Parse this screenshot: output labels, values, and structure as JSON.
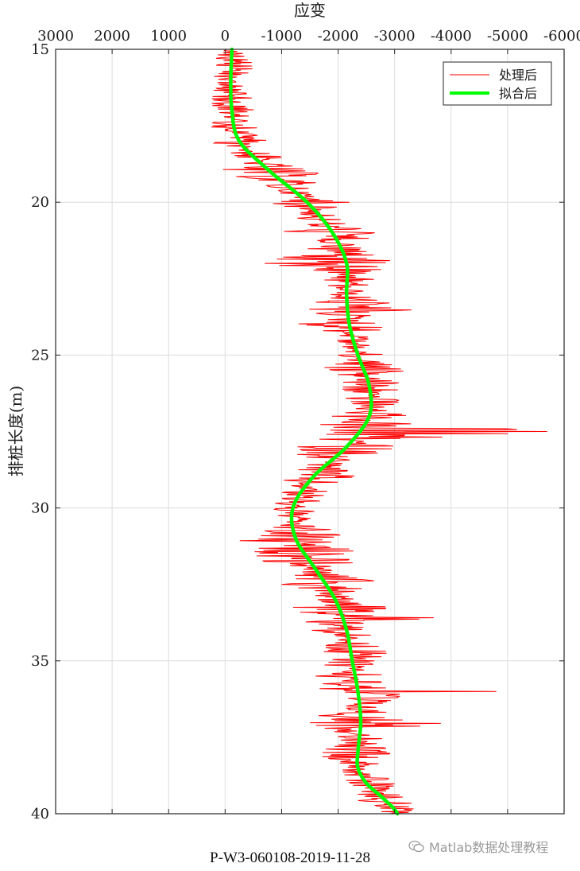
{
  "chart_data": {
    "type": "line",
    "title": "",
    "caption": "P-W3-060108-2019-11-28",
    "xlabel": "应变",
    "ylabel": "排桩长度(m)",
    "x_axis_location": "top",
    "x_reversed": true,
    "xlim": [
      3000,
      -6000
    ],
    "ylim": [
      15,
      40
    ],
    "y_reversed": true,
    "x_ticks": [
      3000,
      2000,
      1000,
      0,
      -1000,
      -2000,
      -3000,
      -4000,
      -5000,
      -6000
    ],
    "y_ticks": [
      15,
      20,
      25,
      30,
      35,
      40
    ],
    "grid": true,
    "legend_position": "top-right",
    "series": [
      {
        "name": "处理后",
        "color": "#ff0000",
        "style": "thin-noisy",
        "depth": [
          15.0,
          15.5,
          16.0,
          16.5,
          17.0,
          17.5,
          18.0,
          18.5,
          19.0,
          19.5,
          20.0,
          20.5,
          21.0,
          21.5,
          22.0,
          22.5,
          23.0,
          23.5,
          24.0,
          24.5,
          25.0,
          25.5,
          26.0,
          26.5,
          27.0,
          27.5,
          28.0,
          28.5,
          29.0,
          29.5,
          30.0,
          30.5,
          31.0,
          31.5,
          32.0,
          32.5,
          33.0,
          33.5,
          34.0,
          34.5,
          35.0,
          35.5,
          36.0,
          36.5,
          37.0,
          37.5,
          38.0,
          38.5,
          39.0,
          39.5,
          40.0
        ],
        "strain": [
          -300,
          400,
          -150,
          100,
          250,
          -600,
          350,
          -1000,
          200,
          -700,
          -2200,
          -1200,
          -3200,
          -1500,
          -700,
          -2600,
          -2200,
          -3400,
          -1200,
          -2600,
          -2000,
          -3500,
          -1500,
          -3200,
          -1800,
          -5700,
          -600,
          -1800,
          -700,
          -1800,
          -1500,
          -1200,
          300,
          -3800,
          -1400,
          -3000,
          -1700,
          -4200,
          -1400,
          -2700,
          -3100,
          -1600,
          -4800,
          -2100,
          -4000,
          -2000,
          -3200,
          -2400,
          -3000,
          -2300,
          -3000
        ]
      },
      {
        "name": "拟合后",
        "color": "#00ff00",
        "style": "thick-smooth",
        "depth": [
          15.0,
          16.0,
          17.0,
          18.0,
          19.0,
          20.0,
          21.0,
          22.0,
          23.0,
          24.0,
          25.0,
          26.0,
          27.0,
          28.0,
          29.0,
          30.0,
          31.0,
          32.0,
          33.0,
          34.0,
          35.0,
          36.0,
          37.0,
          38.0,
          38.5,
          39.0,
          39.5,
          40.0
        ],
        "strain": [
          -120,
          -100,
          -120,
          -250,
          -800,
          -1450,
          -1900,
          -2150,
          -2150,
          -2200,
          -2350,
          -2550,
          -2550,
          -2150,
          -1550,
          -1200,
          -1250,
          -1600,
          -1950,
          -2150,
          -2250,
          -2350,
          -2400,
          -2350,
          -2350,
          -2500,
          -2800,
          -3050
        ]
      }
    ]
  },
  "watermark": {
    "text": "Matlab数据处理教程",
    "icon": "wechat-icon"
  }
}
